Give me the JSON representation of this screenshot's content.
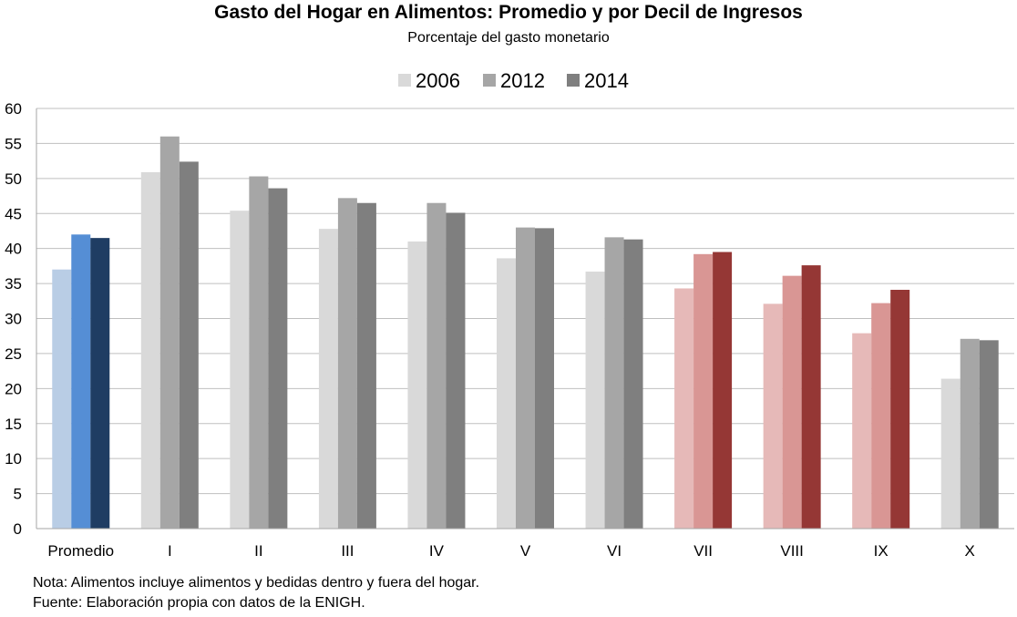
{
  "chart_data": {
    "type": "bar",
    "title": "Gasto del Hogar en Alimentos: Promedio y por Decil de Ingresos",
    "subtitle": "Porcentaje del gasto monetario",
    "xlabel": "",
    "ylabel": "",
    "ylim": [
      0,
      60
    ],
    "yticks": [
      "0",
      "5",
      "10",
      "15",
      "20",
      "25",
      "30",
      "35",
      "40",
      "45",
      "50",
      "55",
      "60"
    ],
    "grid": true,
    "legend_position": "top-center",
    "categories": [
      "Promedio",
      "I",
      "II",
      "III",
      "IV",
      "V",
      "VI",
      "VII",
      "VIII",
      "IX",
      "X"
    ],
    "series": [
      {
        "name": "2006",
        "values": [
          37.0,
          50.9,
          45.4,
          42.8,
          41.0,
          38.6,
          36.7,
          34.3,
          32.1,
          27.9,
          21.4
        ]
      },
      {
        "name": "2012",
        "values": [
          42.0,
          56.0,
          50.3,
          47.2,
          46.5,
          43.0,
          41.6,
          39.2,
          36.1,
          32.2,
          27.1
        ]
      },
      {
        "name": "2014",
        "values": [
          41.5,
          52.4,
          48.6,
          46.5,
          45.1,
          42.9,
          41.3,
          39.5,
          37.6,
          34.1,
          26.9
        ]
      }
    ],
    "legend_colors": [
      "#d9d9d9",
      "#a6a6a6",
      "#7f7f7f"
    ],
    "bar_colors": {
      "gray": [
        "#d9d9d9",
        "#a6a6a6",
        "#7f7f7f"
      ],
      "blue": [
        "#b9cde5",
        "#558ed5",
        "#1f3d63"
      ],
      "red": [
        "#e6b9b8",
        "#d99694",
        "#953735"
      ]
    },
    "category_palette": [
      "blue",
      "gray",
      "gray",
      "gray",
      "gray",
      "gray",
      "gray",
      "red",
      "red",
      "red",
      "gray"
    ]
  },
  "notes": {
    "line1": "Nota: Alimentos incluye alimentos y bedidas dentro y fuera del hogar.",
    "line2": "Fuente: Elaboración propia con datos de la ENIGH."
  }
}
